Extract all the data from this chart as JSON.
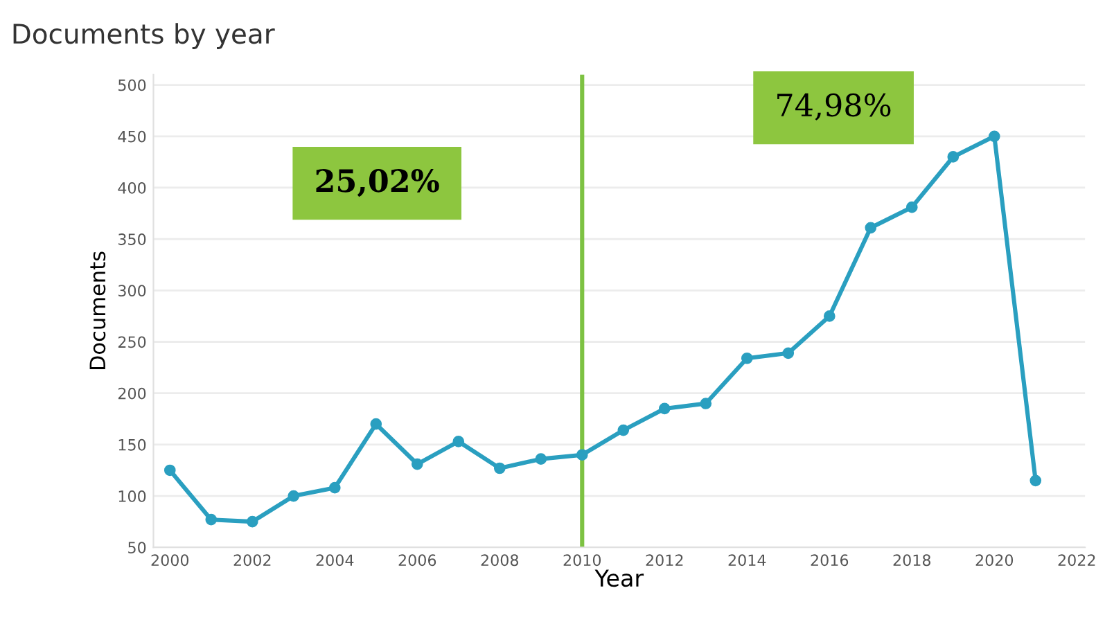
{
  "chart_data": {
    "type": "line",
    "title": "Documents by year",
    "xlabel": "Year",
    "ylabel": "Documents",
    "x": [
      2000,
      2001,
      2002,
      2003,
      2004,
      2005,
      2006,
      2007,
      2008,
      2009,
      2010,
      2011,
      2012,
      2013,
      2014,
      2015,
      2016,
      2017,
      2018,
      2019,
      2020,
      2021
    ],
    "series": [
      {
        "color": "#2a9fc0",
        "values": [
          125,
          77,
          75,
          100,
          108,
          170,
          131,
          153,
          127,
          136,
          140,
          164,
          185,
          190,
          234,
          239,
          275,
          361,
          381,
          430,
          450,
          115
        ]
      }
    ],
    "xlim": [
      1999.6,
      2022.2
    ],
    "xticks": [
      2000,
      2002,
      2004,
      2006,
      2008,
      2010,
      2012,
      2014,
      2016,
      2018,
      2020,
      2022
    ],
    "ylim": [
      50,
      510
    ],
    "yticks": [
      50,
      100,
      150,
      200,
      250,
      300,
      350,
      400,
      450,
      500
    ],
    "ref_lines": [
      {
        "axis": "x",
        "value": 2010,
        "color": "#7dc242"
      }
    ],
    "annotations": [
      "25,02%",
      "74,98%"
    ],
    "grid": "y",
    "marker": "circle",
    "line_style": "solid"
  }
}
